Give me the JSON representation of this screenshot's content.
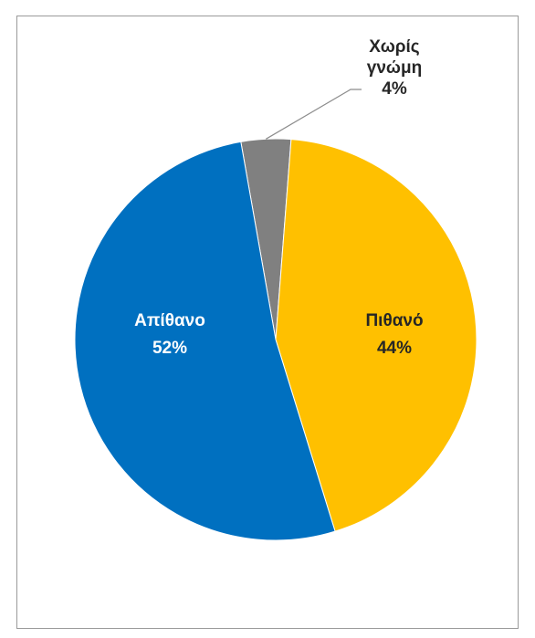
{
  "chart_data": {
    "type": "pie",
    "title": "",
    "slices": [
      {
        "label": "Χωρίς γνώμη",
        "label_lines": [
          "Χωρίς",
          "γνώμη"
        ],
        "value": 4,
        "percent_label": "4%",
        "color": "#808080",
        "label_color": "#262626"
      },
      {
        "label": "Πιθανό",
        "label_lines": [
          "Πιθανό"
        ],
        "value": 44,
        "percent_label": "44%",
        "color": "#FFC000",
        "label_color": "#262626"
      },
      {
        "label": "Απίθανο",
        "label_lines": [
          "Απίθανο"
        ],
        "value": 52,
        "percent_label": "52%",
        "color": "#0070C0",
        "label_color": "#ffffff"
      }
    ],
    "legend": "none",
    "data_labels": "category and percent"
  }
}
